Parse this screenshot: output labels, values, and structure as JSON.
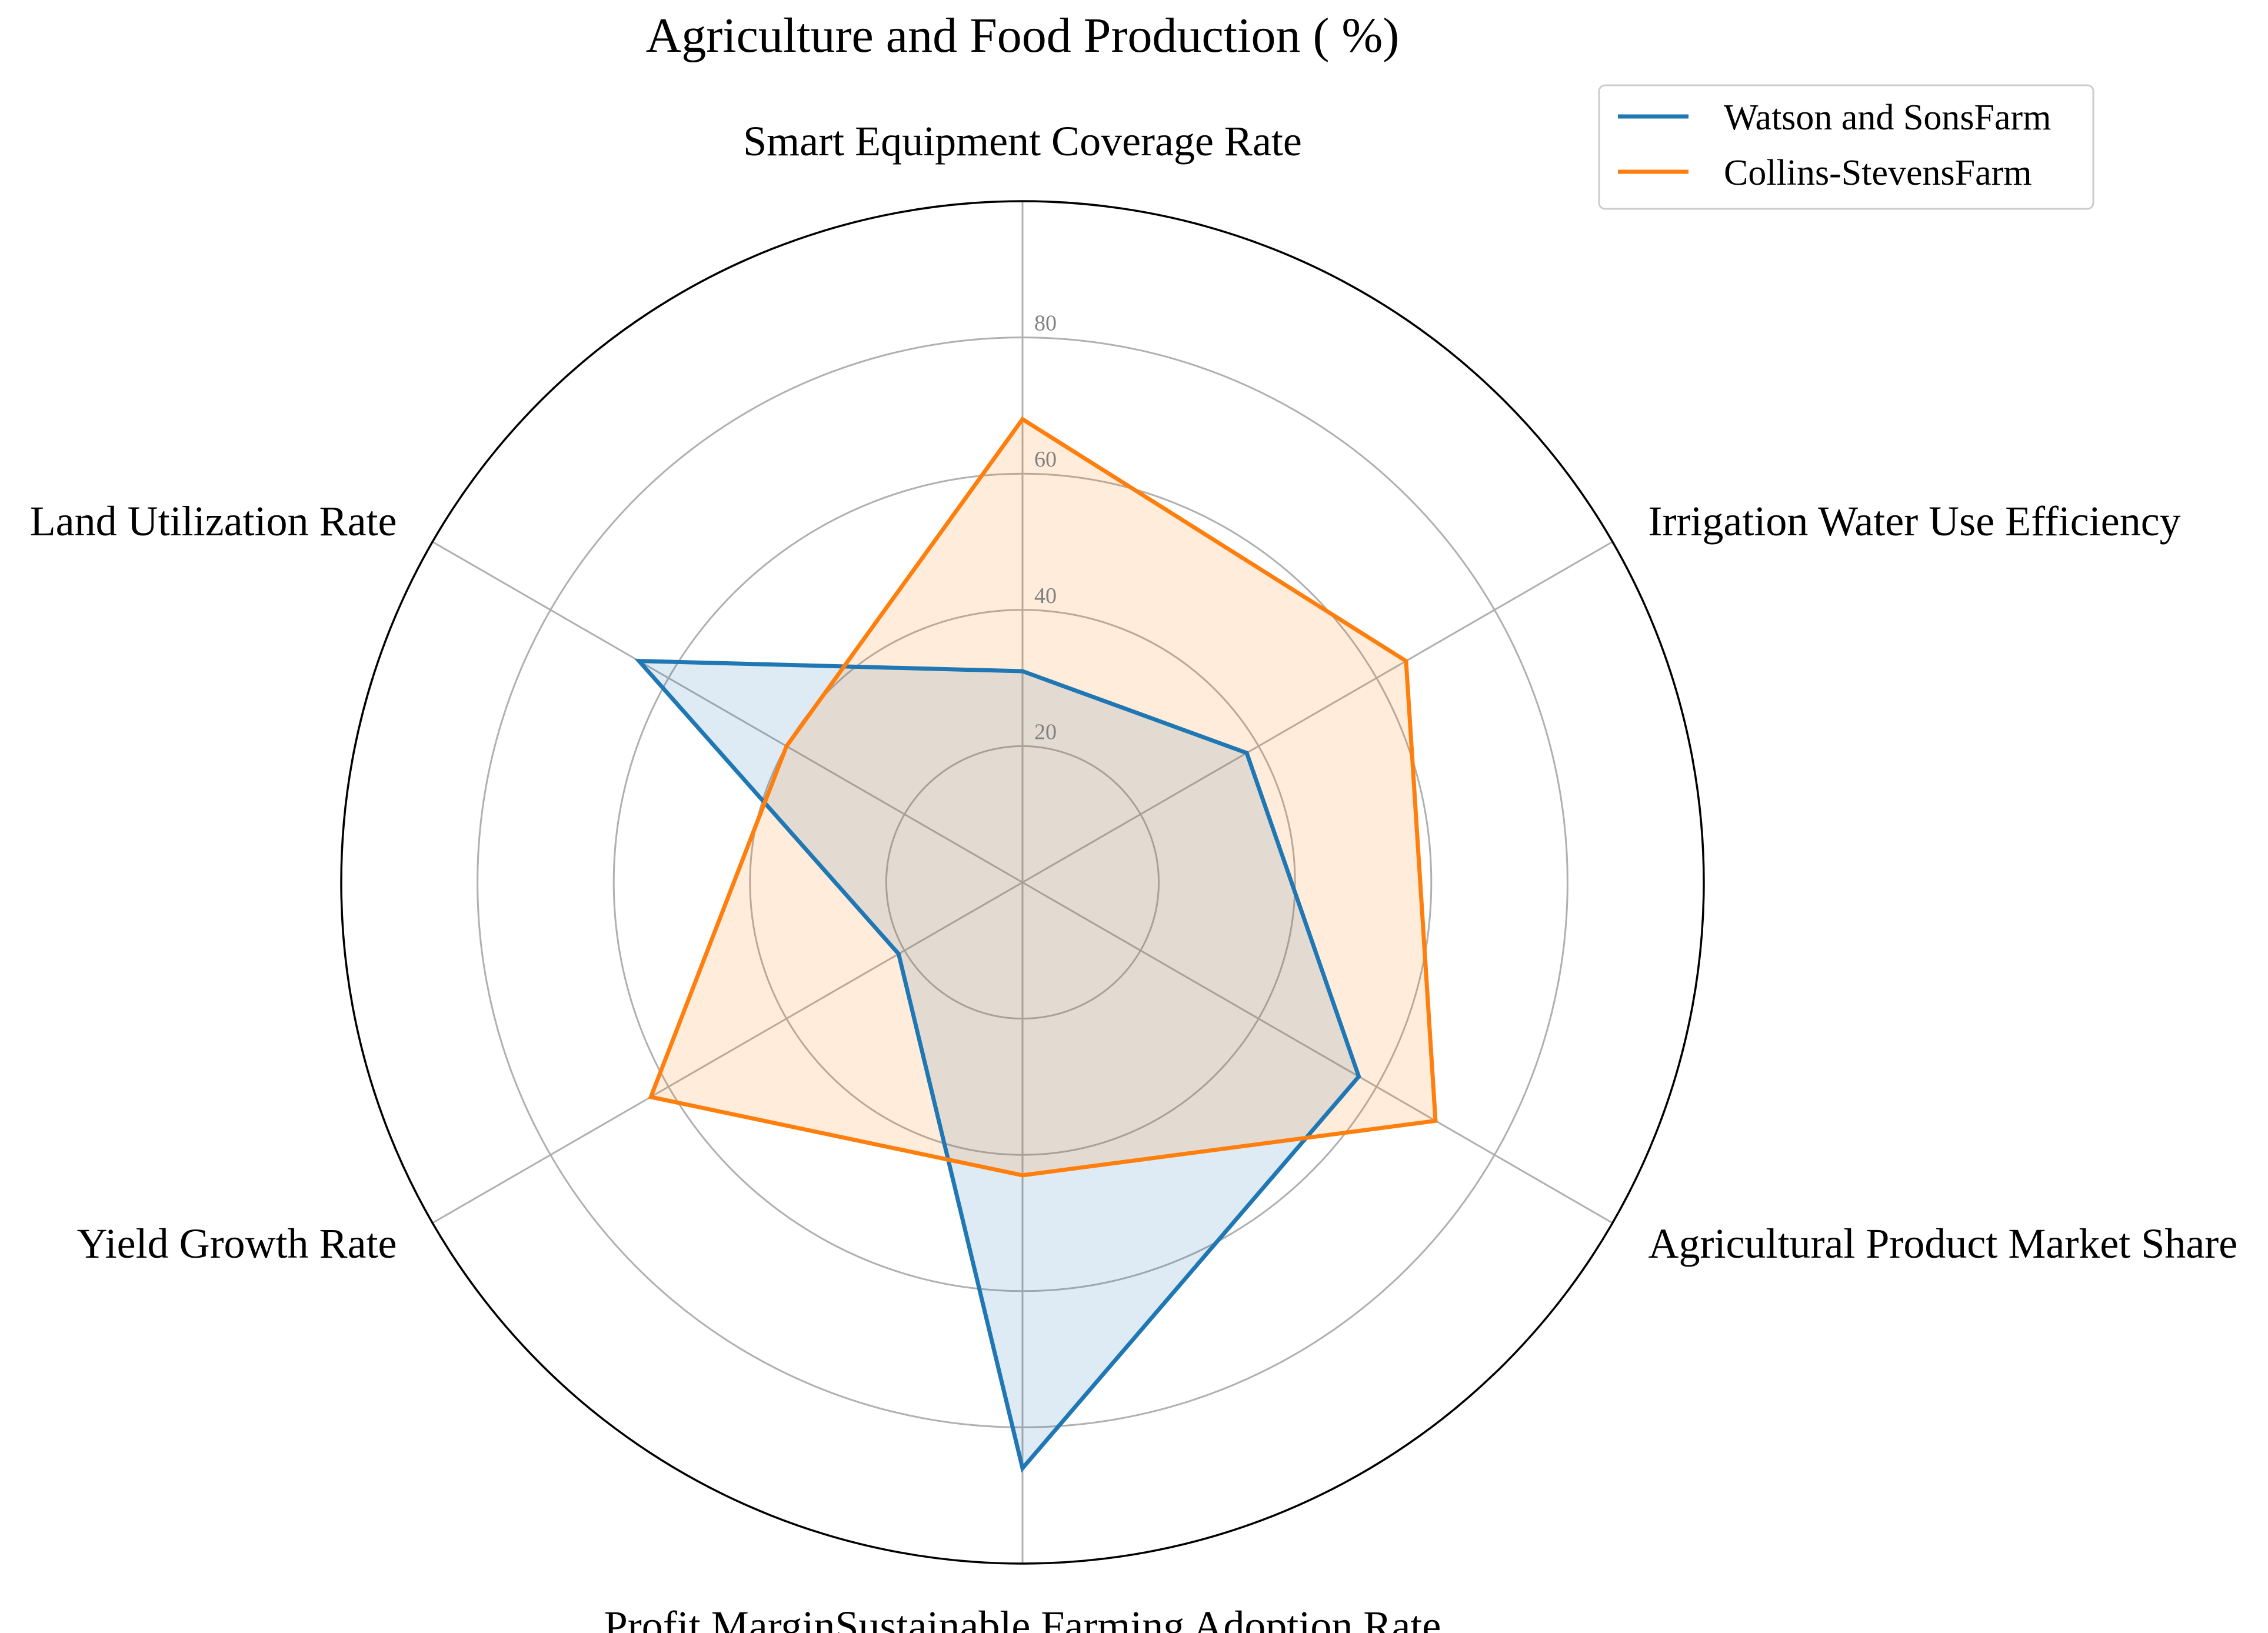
{
  "chart_data": {
    "type": "radar",
    "title": "Agriculture and Food Production ( %)",
    "categories": [
      "Smart Equipment Coverage Rate",
      "Irrigation Water Use Efficiency",
      "Agricultural Product Market Share",
      "Profit MarginSustainable Farming Adoption Rate",
      "Yield Growth Rate",
      "Land Utilization Rate"
    ],
    "series": [
      {
        "name": "Watson and SonsFarm",
        "color": "#1f77b4",
        "values": [
          31,
          38,
          57,
          86,
          21,
          65
        ]
      },
      {
        "name": "Collins-StevensFarm",
        "color": "#ff7f0e",
        "values": [
          68,
          65,
          70,
          43,
          63,
          40
        ]
      }
    ],
    "rticks": [
      20,
      40,
      60,
      80
    ],
    "rtick_labels": [
      "20",
      "40",
      "60",
      "80"
    ],
    "rlim": [
      0,
      100
    ],
    "grid": true,
    "legend_position": "upper right"
  }
}
